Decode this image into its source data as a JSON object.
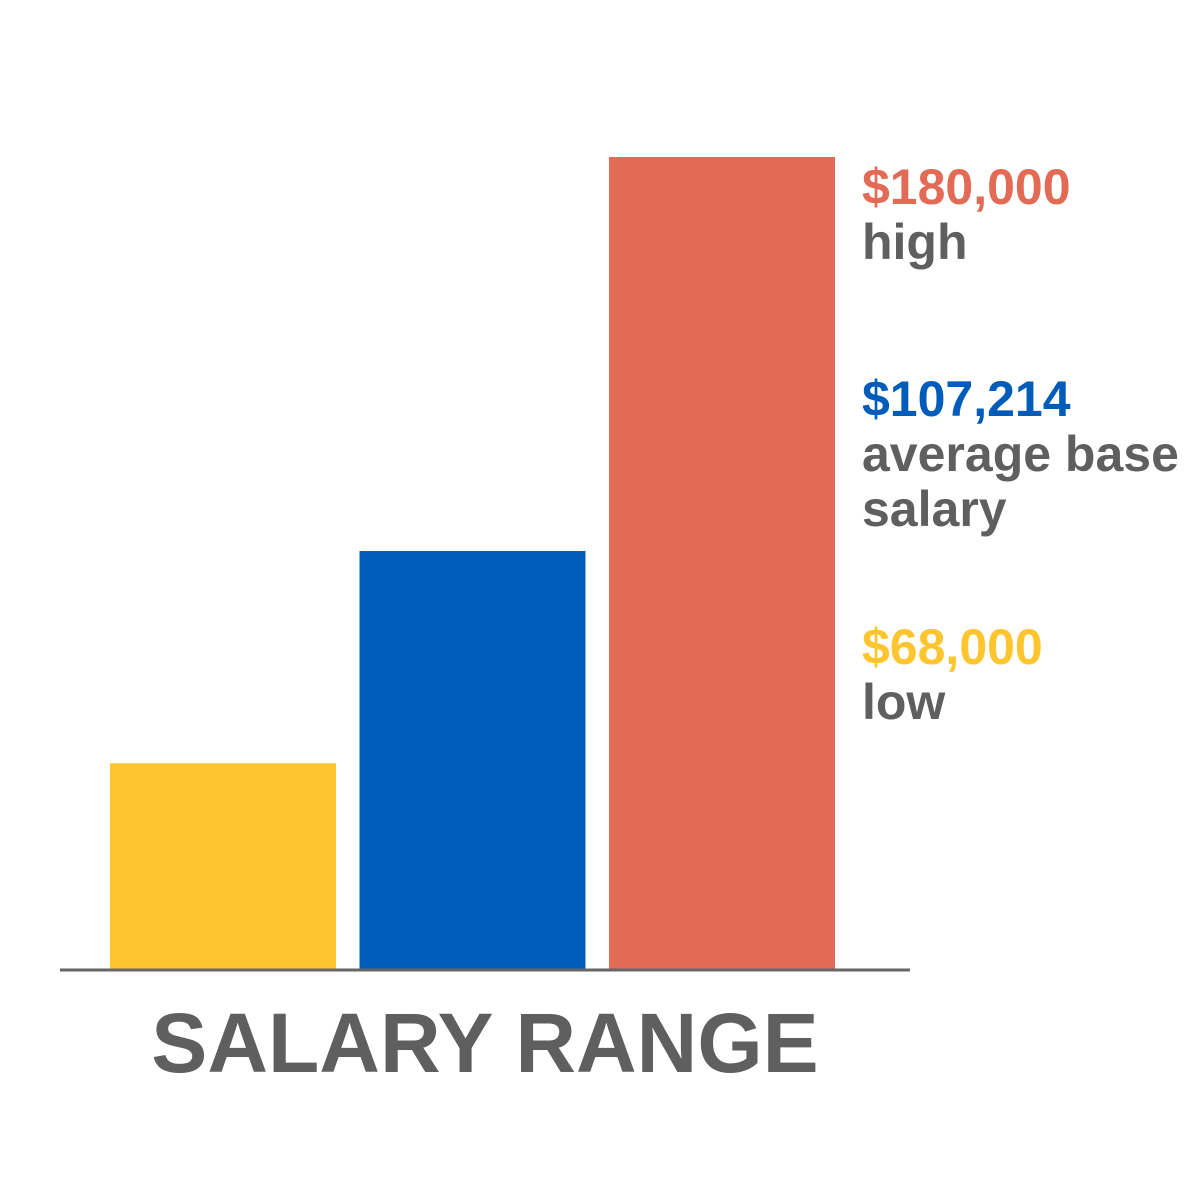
{
  "chart_data": {
    "type": "bar",
    "title": "SALARY RANGE",
    "categories": [
      "low",
      "average base salary",
      "high"
    ],
    "values": [
      68000,
      107214,
      180000
    ],
    "value_labels": [
      "$68,000",
      "$107,214",
      "$180,000"
    ],
    "colors": [
      "#fec52e",
      "#005cbb",
      "#e36a55"
    ],
    "ylim": [
      30000,
      180000
    ]
  }
}
